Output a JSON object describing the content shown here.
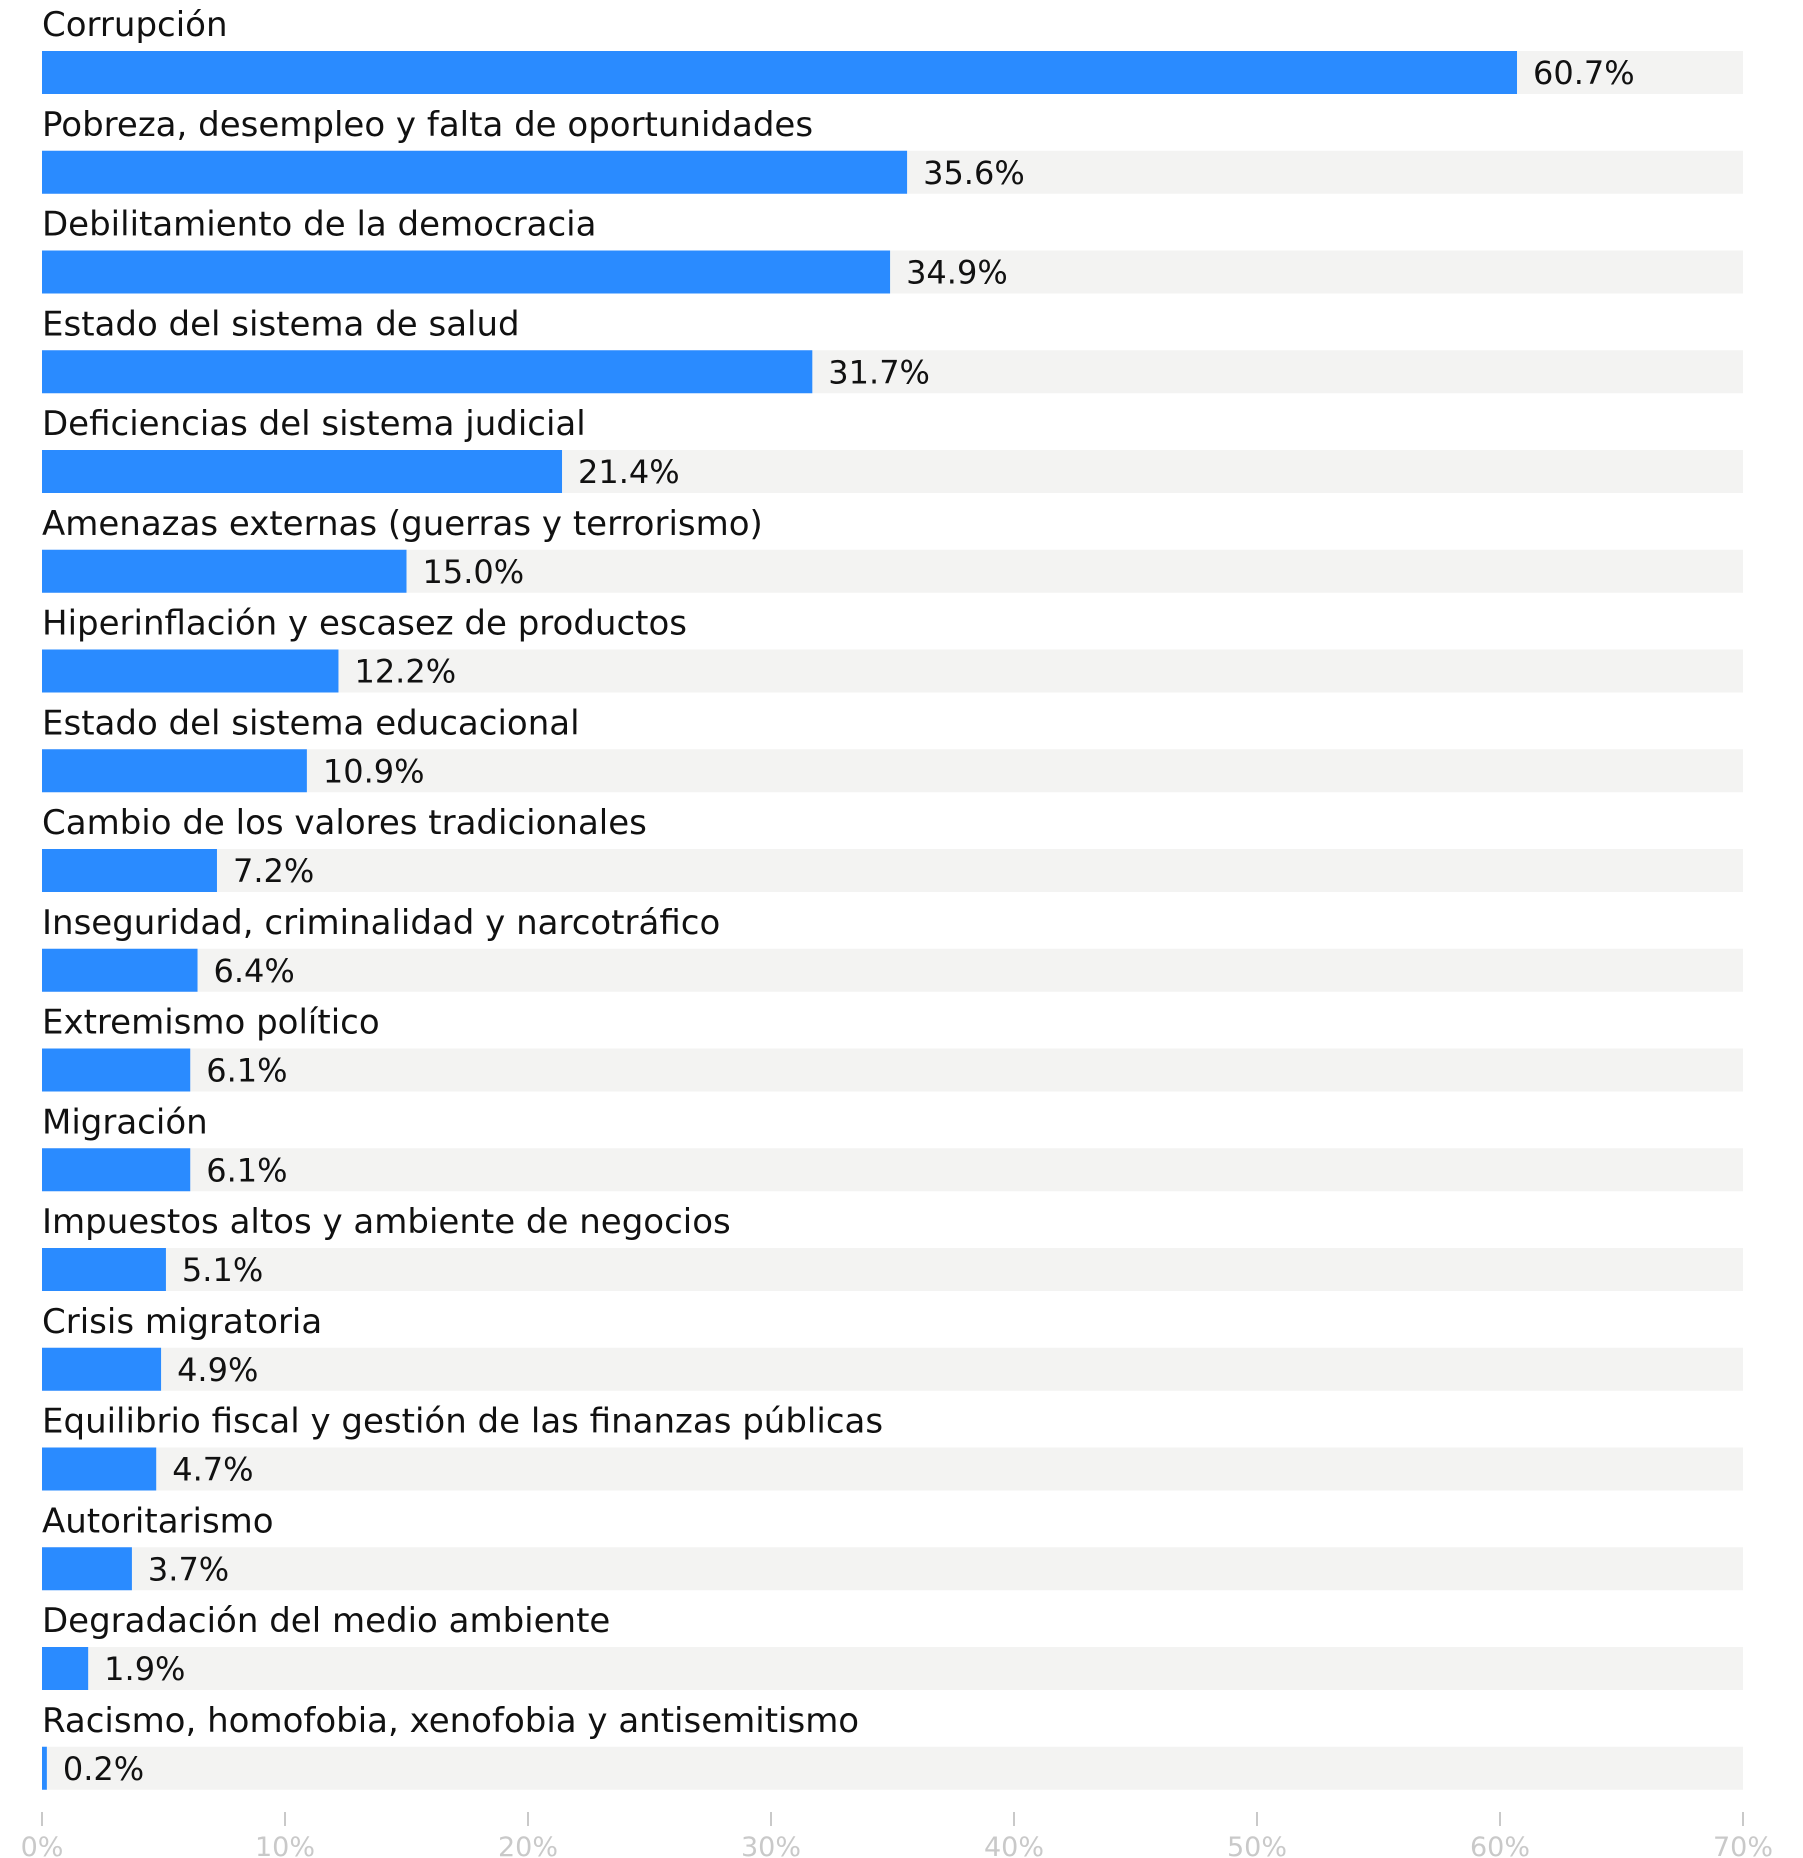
{
  "chart_data": {
    "type": "bar",
    "orientation": "horizontal",
    "title": "",
    "xlabel": "",
    "ylabel": "",
    "xlim": [
      0,
      70
    ],
    "grid": false,
    "legend": "none",
    "value_suffix": "%",
    "categories": [
      "Corrupción",
      "Pobreza, desempleo y falta de oportunidades",
      "Debilitamiento de la democracia",
      "Estado del sistema de salud",
      "Deficiencias del sistema judicial",
      "Amenazas externas (guerras y terrorismo)",
      "Hiperinflación y escasez de productos",
      "Estado del sistema educacional",
      "Cambio de los valores tradicionales",
      "Inseguridad, criminalidad y narcotráfico",
      "Extremismo político",
      "Migración",
      "Impuestos altos y ambiente de negocios",
      "Crisis migratoria",
      "Equilibrio fiscal y gestión de las finanzas públicas",
      "Autoritarismo",
      "Degradación del medio ambiente",
      "Racismo, homofobia, xenofobia y antisemitismo"
    ],
    "values": [
      60.7,
      35.6,
      34.9,
      31.7,
      21.4,
      15.0,
      12.2,
      10.9,
      7.2,
      6.4,
      6.1,
      6.1,
      5.1,
      4.9,
      4.7,
      3.7,
      1.9,
      0.2
    ],
    "value_labels": [
      "60.7%",
      "35.6%",
      "34.9%",
      "31.7%",
      "21.4%",
      "15.0%",
      "12.2%",
      "10.9%",
      "7.2%",
      "6.4%",
      "6.1%",
      "6.1%",
      "5.1%",
      "4.9%",
      "4.7%",
      "3.7%",
      "1.9%",
      "0.2%"
    ],
    "x_ticks": [
      0,
      10,
      20,
      30,
      40,
      50,
      60,
      70
    ],
    "x_tick_labels": [
      "0%",
      "10%",
      "20%",
      "30%",
      "40%",
      "50%",
      "60%",
      "70%"
    ],
    "colors": {
      "bar": "#2a8bff",
      "track": "#f3f3f2",
      "text": "#111111",
      "tick": "#c9c9c9"
    }
  }
}
